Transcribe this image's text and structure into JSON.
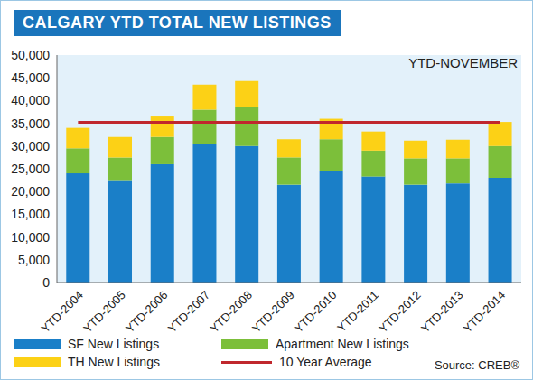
{
  "chart_data": {
    "type": "bar",
    "title": "CALGARY YTD TOTAL NEW LISTINGS",
    "subtitle": "YTD-NOVEMBER",
    "annotation": "Source: CREB®",
    "categories": [
      "YTD-2004",
      "YTD-2005",
      "YTD-2006",
      "YTD-2007",
      "YTD-2008",
      "YTD-2009",
      "YTD-2010",
      "YTD-2011",
      "YTD-2012",
      "YTD-2013",
      "YTD-2014"
    ],
    "series": [
      {
        "name": "SF New Listings",
        "color": "#1a7fc8",
        "values": [
          24000,
          22500,
          26000,
          30500,
          30000,
          21500,
          24500,
          23300,
          21500,
          21800,
          23000
        ]
      },
      {
        "name": "Apartment New Listings",
        "color": "#7cbf3a",
        "values": [
          5500,
          5000,
          6000,
          7500,
          8500,
          6000,
          7000,
          5700,
          5800,
          5500,
          7000
        ]
      },
      {
        "name": "TH New Listings",
        "color": "#fcd116",
        "values": [
          4500,
          4500,
          4500,
          5500,
          5800,
          4000,
          4500,
          4200,
          3900,
          4100,
          5300
        ]
      },
      {
        "name": "10 Year Average",
        "type": "line",
        "color": "#c0272d",
        "values": [
          35200,
          35200,
          35200,
          35200,
          35200,
          35200,
          35200,
          35200,
          35200,
          35200,
          35200
        ]
      }
    ],
    "ylim": [
      0,
      50000
    ],
    "yticks": [
      0,
      {
        "value": 5000,
        "label": "5,000"
      },
      {
        "value": 10000,
        "label": "10,000"
      },
      {
        "value": 15000,
        "label": "15,000"
      },
      {
        "value": 20000,
        "label": "20,000"
      },
      {
        "value": 25000,
        "label": "25,000"
      },
      {
        "value": 30000,
        "label": "30,000"
      },
      {
        "value": 35000,
        "label": "35,000"
      },
      {
        "value": 40000,
        "label": "40,000"
      },
      {
        "value": 45000,
        "label": "45,000"
      },
      {
        "value": 50000,
        "label": "50,000"
      }
    ],
    "stacked": true,
    "grid": false,
    "legend": "bottom"
  }
}
